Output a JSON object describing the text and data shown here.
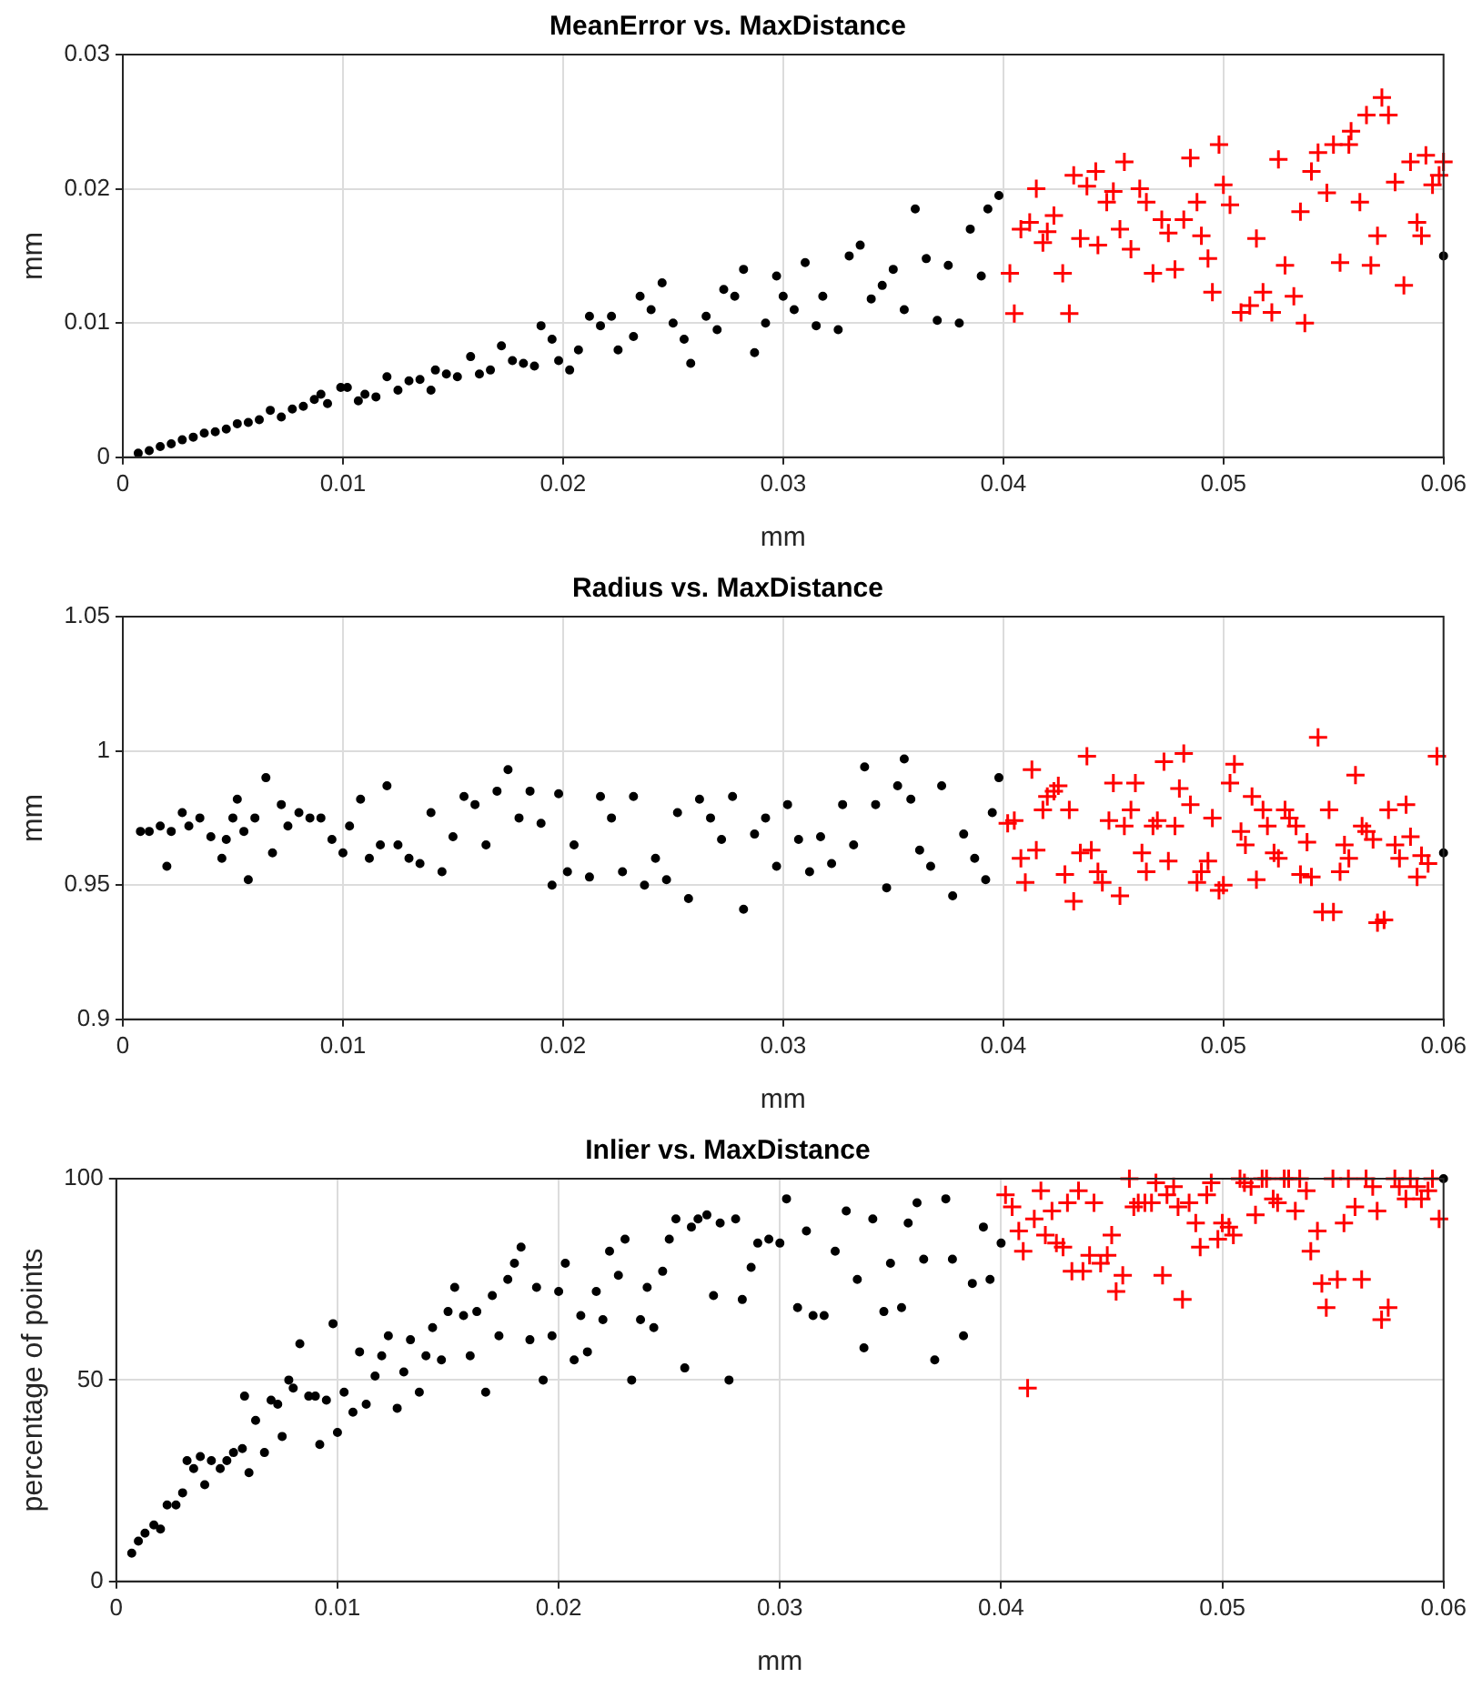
{
  "chart_data": [
    {
      "type": "scatter",
      "title": "MeanError vs. MaxDistance",
      "xlabel": "mm",
      "ylabel": "mm",
      "xlim": [
        0,
        0.06
      ],
      "xticks": [
        0,
        0.01,
        0.02,
        0.03,
        0.04,
        0.05,
        0.06
      ],
      "ylim": [
        0,
        0.03
      ],
      "yticks": [
        0,
        0.01,
        0.02,
        0.03
      ],
      "grid": true,
      "series": [
        {
          "color": "#000000",
          "marker": "circle",
          "x": [
            0.0007,
            0.0012,
            0.0017,
            0.0022,
            0.0027,
            0.0032,
            0.0037,
            0.0042,
            0.0047,
            0.0052,
            0.0057,
            0.0062,
            0.0067,
            0.0072,
            0.0077,
            0.0082,
            0.0087,
            0.009,
            0.0093,
            0.0099,
            0.0102,
            0.0107,
            0.011,
            0.0115,
            0.012,
            0.0125,
            0.013,
            0.0135,
            0.014,
            0.0142,
            0.0147,
            0.0152,
            0.0158,
            0.0162,
            0.0167,
            0.0172,
            0.0177,
            0.0182,
            0.0187,
            0.019,
            0.0195,
            0.0198,
            0.0203,
            0.0207,
            0.0212,
            0.0217,
            0.0222,
            0.0225,
            0.0232,
            0.0235,
            0.024,
            0.0245,
            0.025,
            0.0255,
            0.0258,
            0.0265,
            0.027,
            0.0273,
            0.0278,
            0.0282,
            0.0287,
            0.0292,
            0.0297,
            0.03,
            0.0305,
            0.031,
            0.0315,
            0.0318,
            0.0325,
            0.033,
            0.0335,
            0.034,
            0.0345,
            0.035,
            0.0355,
            0.036,
            0.0365,
            0.037,
            0.0375,
            0.038,
            0.0385,
            0.039,
            0.0393,
            0.0398,
            0.06
          ],
          "values": [
            0.0003,
            0.0005,
            0.0008,
            0.001,
            0.0013,
            0.0015,
            0.0018,
            0.0019,
            0.0021,
            0.0025,
            0.0026,
            0.0028,
            0.0035,
            0.003,
            0.0036,
            0.0038,
            0.0043,
            0.0047,
            0.004,
            0.0052,
            0.0052,
            0.0042,
            0.0047,
            0.0045,
            0.006,
            0.005,
            0.0057,
            0.0058,
            0.005,
            0.0065,
            0.0062,
            0.006,
            0.0075,
            0.0062,
            0.0065,
            0.0083,
            0.0072,
            0.007,
            0.0068,
            0.0098,
            0.0088,
            0.0072,
            0.0065,
            0.008,
            0.0105,
            0.0098,
            0.0105,
            0.008,
            0.009,
            0.012,
            0.011,
            0.013,
            0.01,
            0.0088,
            0.007,
            0.0105,
            0.0095,
            0.0125,
            0.012,
            0.014,
            0.0078,
            0.01,
            0.0135,
            0.012,
            0.011,
            0.0145,
            0.0098,
            0.012,
            0.0095,
            0.015,
            0.0158,
            0.0118,
            0.0128,
            0.014,
            0.011,
            0.0185,
            0.0148,
            0.0102,
            0.0143,
            0.01,
            0.017,
            0.0135,
            0.0185,
            0.0195,
            0.015
          ]
        },
        {
          "color": "#ff0000",
          "marker": "cross",
          "x": [
            0.0403,
            0.0405,
            0.0408,
            0.0412,
            0.0415,
            0.0418,
            0.042,
            0.0423,
            0.0427,
            0.043,
            0.0432,
            0.0435,
            0.0438,
            0.0442,
            0.0443,
            0.0447,
            0.045,
            0.0453,
            0.0455,
            0.0458,
            0.0462,
            0.0465,
            0.0468,
            0.0472,
            0.0475,
            0.0478,
            0.0482,
            0.0485,
            0.0488,
            0.049,
            0.0493,
            0.0495,
            0.0498,
            0.05,
            0.0503,
            0.0508,
            0.0512,
            0.0515,
            0.0518,
            0.0522,
            0.0525,
            0.0528,
            0.0532,
            0.0535,
            0.0537,
            0.054,
            0.0543,
            0.0547,
            0.055,
            0.0553,
            0.0557,
            0.0558,
            0.0562,
            0.0565,
            0.0567,
            0.057,
            0.0572,
            0.0575,
            0.0578,
            0.0582,
            0.0585,
            0.0588,
            0.059,
            0.0592,
            0.0595,
            0.0598,
            0.06
          ],
          "values": [
            0.0137,
            0.0107,
            0.017,
            0.0175,
            0.02,
            0.016,
            0.0168,
            0.018,
            0.0137,
            0.0107,
            0.021,
            0.0163,
            0.0202,
            0.0213,
            0.0158,
            0.019,
            0.0198,
            0.017,
            0.022,
            0.0155,
            0.02,
            0.019,
            0.0137,
            0.0177,
            0.0167,
            0.014,
            0.0177,
            0.0223,
            0.019,
            0.0165,
            0.0148,
            0.0123,
            0.0233,
            0.0203,
            0.0188,
            0.0108,
            0.0113,
            0.0163,
            0.0123,
            0.0108,
            0.0222,
            0.0143,
            0.012,
            0.0183,
            0.01,
            0.0213,
            0.0227,
            0.0197,
            0.0233,
            0.0145,
            0.0233,
            0.0243,
            0.019,
            0.0255,
            0.0143,
            0.0165,
            0.0268,
            0.0255,
            0.0205,
            0.0128,
            0.022,
            0.0175,
            0.0165,
            0.0225,
            0.0203,
            0.021,
            0.022
          ]
        }
      ]
    },
    {
      "type": "scatter",
      "title": "Radius vs. MaxDistance",
      "xlabel": "mm",
      "ylabel": "mm",
      "xlim": [
        0,
        0.06
      ],
      "xticks": [
        0,
        0.01,
        0.02,
        0.03,
        0.04,
        0.05,
        0.06
      ],
      "ylim": [
        0.9,
        1.05
      ],
      "yticks": [
        0.9,
        0.95,
        1,
        1.05
      ],
      "grid": true,
      "series": [
        {
          "color": "#000000",
          "marker": "circle",
          "x": [
            0.0008,
            0.0012,
            0.0017,
            0.002,
            0.0022,
            0.0027,
            0.003,
            0.0035,
            0.004,
            0.0045,
            0.0047,
            0.005,
            0.0052,
            0.0055,
            0.0057,
            0.006,
            0.0065,
            0.0068,
            0.0072,
            0.0075,
            0.008,
            0.0085,
            0.009,
            0.0095,
            0.01,
            0.0103,
            0.0108,
            0.0112,
            0.0117,
            0.012,
            0.0125,
            0.013,
            0.0135,
            0.014,
            0.0145,
            0.015,
            0.0155,
            0.016,
            0.0165,
            0.017,
            0.0175,
            0.018,
            0.0185,
            0.019,
            0.0195,
            0.0198,
            0.0202,
            0.0205,
            0.0212,
            0.0217,
            0.0222,
            0.0227,
            0.0232,
            0.0237,
            0.0242,
            0.0247,
            0.0252,
            0.0257,
            0.0262,
            0.0267,
            0.0272,
            0.0277,
            0.0282,
            0.0287,
            0.0292,
            0.0297,
            0.0302,
            0.0307,
            0.0312,
            0.0317,
            0.0322,
            0.0327,
            0.0332,
            0.0337,
            0.0342,
            0.0347,
            0.0352,
            0.0355,
            0.0358,
            0.0362,
            0.0367,
            0.0372,
            0.0377,
            0.0382,
            0.0387,
            0.0392,
            0.0395,
            0.0398,
            0.06
          ],
          "values": [
            0.97,
            0.97,
            0.972,
            0.957,
            0.97,
            0.977,
            0.972,
            0.975,
            0.968,
            0.96,
            0.967,
            0.975,
            0.982,
            0.97,
            0.952,
            0.975,
            0.99,
            0.962,
            0.98,
            0.972,
            0.977,
            0.975,
            0.975,
            0.967,
            0.962,
            0.972,
            0.982,
            0.96,
            0.965,
            0.987,
            0.965,
            0.96,
            0.958,
            0.977,
            0.955,
            0.968,
            0.983,
            0.98,
            0.965,
            0.985,
            0.993,
            0.975,
            0.985,
            0.973,
            0.95,
            0.984,
            0.955,
            0.965,
            0.953,
            0.983,
            0.975,
            0.955,
            0.983,
            0.95,
            0.96,
            0.952,
            0.977,
            0.945,
            0.982,
            0.975,
            0.967,
            0.983,
            0.941,
            0.969,
            0.975,
            0.957,
            0.98,
            0.967,
            0.955,
            0.968,
            0.958,
            0.98,
            0.965,
            0.994,
            0.98,
            0.949,
            0.987,
            0.997,
            0.982,
            0.963,
            0.957,
            0.987,
            0.946,
            0.969,
            0.96,
            0.952,
            0.977,
            0.99,
            0.962
          ]
        },
        {
          "color": "#ff0000",
          "marker": "cross",
          "x": [
            0.0402,
            0.0405,
            0.0408,
            0.041,
            0.0413,
            0.0415,
            0.0418,
            0.042,
            0.0423,
            0.0425,
            0.0428,
            0.043,
            0.0432,
            0.0435,
            0.0438,
            0.044,
            0.0443,
            0.0445,
            0.0448,
            0.045,
            0.0453,
            0.0455,
            0.0458,
            0.046,
            0.0463,
            0.0465,
            0.0468,
            0.047,
            0.0473,
            0.0475,
            0.0478,
            0.048,
            0.0482,
            0.0485,
            0.0488,
            0.049,
            0.0493,
            0.0495,
            0.0498,
            0.05,
            0.0503,
            0.0505,
            0.0508,
            0.051,
            0.0513,
            0.0515,
            0.0518,
            0.052,
            0.0523,
            0.0525,
            0.0528,
            0.053,
            0.0533,
            0.0535,
            0.0538,
            0.054,
            0.0543,
            0.0545,
            0.0548,
            0.055,
            0.0553,
            0.0555,
            0.0557,
            0.056,
            0.0563,
            0.0565,
            0.0568,
            0.057,
            0.0573,
            0.0575,
            0.0578,
            0.058,
            0.0583,
            0.0585,
            0.0588,
            0.059,
            0.0593,
            0.0597
          ],
          "values": [
            0.973,
            0.974,
            0.96,
            0.951,
            0.993,
            0.963,
            0.978,
            0.983,
            0.985,
            0.987,
            0.954,
            0.978,
            0.944,
            0.962,
            0.998,
            0.963,
            0.955,
            0.951,
            0.974,
            0.988,
            0.946,
            0.972,
            0.978,
            0.988,
            0.962,
            0.955,
            0.972,
            0.974,
            0.996,
            0.959,
            0.972,
            0.986,
            0.999,
            0.98,
            0.951,
            0.955,
            0.959,
            0.975,
            0.948,
            0.95,
            0.988,
            0.995,
            0.97,
            0.965,
            0.983,
            0.952,
            0.978,
            0.972,
            0.962,
            0.96,
            0.978,
            0.975,
            0.972,
            0.954,
            0.966,
            0.953,
            1.005,
            0.94,
            0.978,
            0.94,
            0.955,
            0.965,
            0.96,
            0.991,
            0.972,
            0.97,
            0.967,
            0.936,
            0.937,
            0.978,
            0.965,
            0.96,
            0.98,
            0.968,
            0.953,
            0.961,
            0.958,
            0.998
          ]
        }
      ]
    },
    {
      "type": "scatter",
      "title": "Inlier vs. MaxDistance",
      "xlabel": "mm",
      "ylabel": "percentage of points",
      "xlim": [
        0,
        0.06
      ],
      "xticks": [
        0,
        0.01,
        0.02,
        0.03,
        0.04,
        0.05,
        0.06
      ],
      "ylim": [
        0,
        100
      ],
      "yticks": [
        0,
        50,
        100
      ],
      "grid": true,
      "series": [
        {
          "color": "#000000",
          "marker": "circle",
          "x": [
            0.0007,
            0.001,
            0.0013,
            0.0017,
            0.002,
            0.0023,
            0.0027,
            0.003,
            0.0032,
            0.0035,
            0.0038,
            0.004,
            0.0043,
            0.0047,
            0.005,
            0.0053,
            0.0057,
            0.0058,
            0.006,
            0.0063,
            0.0067,
            0.007,
            0.0073,
            0.0075,
            0.0078,
            0.008,
            0.0083,
            0.0087,
            0.009,
            0.0092,
            0.0095,
            0.0098,
            0.01,
            0.0103,
            0.0107,
            0.011,
            0.0113,
            0.0117,
            0.012,
            0.0123,
            0.0127,
            0.013,
            0.0133,
            0.0137,
            0.014,
            0.0143,
            0.0147,
            0.015,
            0.0153,
            0.0157,
            0.016,
            0.0163,
            0.0167,
            0.017,
            0.0173,
            0.0177,
            0.018,
            0.0183,
            0.0187,
            0.019,
            0.0193,
            0.0197,
            0.02,
            0.0203,
            0.0207,
            0.021,
            0.0213,
            0.0217,
            0.022,
            0.0223,
            0.0227,
            0.023,
            0.0233,
            0.0237,
            0.024,
            0.0243,
            0.0247,
            0.025,
            0.0253,
            0.0257,
            0.026,
            0.0263,
            0.0267,
            0.027,
            0.0273,
            0.0277,
            0.028,
            0.0283,
            0.0287,
            0.029,
            0.0295,
            0.03,
            0.0303,
            0.0308,
            0.0312,
            0.0315,
            0.032,
            0.0325,
            0.033,
            0.0335,
            0.0338,
            0.0342,
            0.0347,
            0.035,
            0.0355,
            0.0358,
            0.0362,
            0.0365,
            0.037,
            0.0375,
            0.0378,
            0.0383,
            0.0387,
            0.0392,
            0.0395,
            0.04,
            0.06
          ],
          "values": [
            7,
            10,
            12,
            14,
            13,
            19,
            19,
            22,
            30,
            28,
            31,
            24,
            30,
            28,
            30,
            32,
            33,
            46,
            27,
            40,
            32,
            45,
            44,
            36,
            50,
            48,
            59,
            46,
            46,
            34,
            45,
            64,
            37,
            47,
            42,
            57,
            44,
            51,
            56,
            61,
            43,
            52,
            60,
            47,
            56,
            63,
            55,
            67,
            73,
            66,
            56,
            67,
            47,
            71,
            61,
            75,
            79,
            83,
            60,
            73,
            50,
            61,
            72,
            79,
            55,
            66,
            57,
            72,
            65,
            82,
            76,
            85,
            50,
            65,
            73,
            63,
            77,
            85,
            90,
            53,
            88,
            90,
            91,
            71,
            89,
            50,
            90,
            70,
            78,
            84,
            85,
            84,
            95,
            68,
            87,
            66,
            66,
            82,
            92,
            75,
            58,
            90,
            67,
            79,
            68,
            89,
            94,
            80,
            55,
            95,
            80,
            61,
            74,
            88,
            75,
            84,
            100
          ]
        },
        {
          "color": "#ff0000",
          "marker": "cross",
          "x": [
            0.0402,
            0.0405,
            0.0408,
            0.041,
            0.0412,
            0.0415,
            0.0418,
            0.042,
            0.0423,
            0.0425,
            0.0428,
            0.043,
            0.0432,
            0.0435,
            0.0437,
            0.044,
            0.0442,
            0.0445,
            0.0448,
            0.045,
            0.0452,
            0.0455,
            0.0458,
            0.046,
            0.0462,
            0.0465,
            0.0468,
            0.047,
            0.0473,
            0.0475,
            0.0478,
            0.048,
            0.0482,
            0.0485,
            0.0488,
            0.049,
            0.0493,
            0.0495,
            0.0498,
            0.05,
            0.0503,
            0.0505,
            0.0508,
            0.051,
            0.0513,
            0.0515,
            0.0518,
            0.052,
            0.0523,
            0.0525,
            0.0528,
            0.053,
            0.0533,
            0.0535,
            0.0538,
            0.054,
            0.0543,
            0.0545,
            0.0547,
            0.055,
            0.0552,
            0.0555,
            0.0557,
            0.056,
            0.0563,
            0.0565,
            0.0568,
            0.057,
            0.0572,
            0.0575,
            0.0578,
            0.058,
            0.0583,
            0.0585,
            0.0588,
            0.059,
            0.0593,
            0.0595,
            0.0598
          ],
          "values": [
            96,
            93,
            87,
            82,
            48,
            90,
            97,
            86,
            92,
            84,
            83,
            94,
            77,
            97,
            77,
            81,
            94,
            79,
            81,
            86,
            72,
            76,
            100,
            93,
            94,
            94,
            94,
            99,
            76,
            96,
            98,
            93,
            70,
            94,
            89,
            83,
            96,
            99,
            85,
            89,
            88,
            86,
            100,
            99,
            98,
            91,
            100,
            100,
            95,
            94,
            100,
            100,
            92,
            100,
            97,
            82,
            87,
            74,
            68,
            100,
            75,
            89,
            100,
            93,
            75,
            100,
            98,
            92,
            65,
            68,
            100,
            98,
            95,
            100,
            98,
            95,
            97,
            100,
            90
          ]
        }
      ]
    }
  ]
}
